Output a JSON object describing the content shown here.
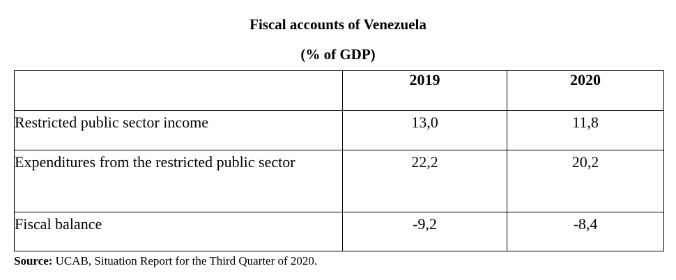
{
  "title": "Fiscal accounts of Venezuela",
  "subtitle": "(% of GDP)",
  "table": {
    "corner": "",
    "columns": [
      "2019",
      "2020"
    ],
    "rows": [
      {
        "label": "Restricted public sector income",
        "values": [
          "13,0",
          "11,8"
        ]
      },
      {
        "label": "Expenditures from the restricted public sector",
        "values": [
          "22,2",
          "20,2"
        ]
      },
      {
        "label": "Fiscal balance",
        "values": [
          "-9,2",
          "-8,4"
        ]
      }
    ]
  },
  "source": {
    "label": "Source:",
    "text": " UCAB, Situation Report for the Third Quarter of 2020."
  },
  "chart_data": {
    "type": "table",
    "title": "Fiscal accounts of Venezuela",
    "subtitle": "(% of GDP)",
    "columns": [
      "2019",
      "2020"
    ],
    "rows": [
      {
        "label": "Restricted public sector income",
        "values": [
          13.0,
          11.8
        ]
      },
      {
        "label": "Expenditures from the restricted public sector",
        "values": [
          22.2,
          20.2
        ]
      },
      {
        "label": "Fiscal balance",
        "values": [
          -9.2,
          -8.4
        ]
      }
    ]
  }
}
